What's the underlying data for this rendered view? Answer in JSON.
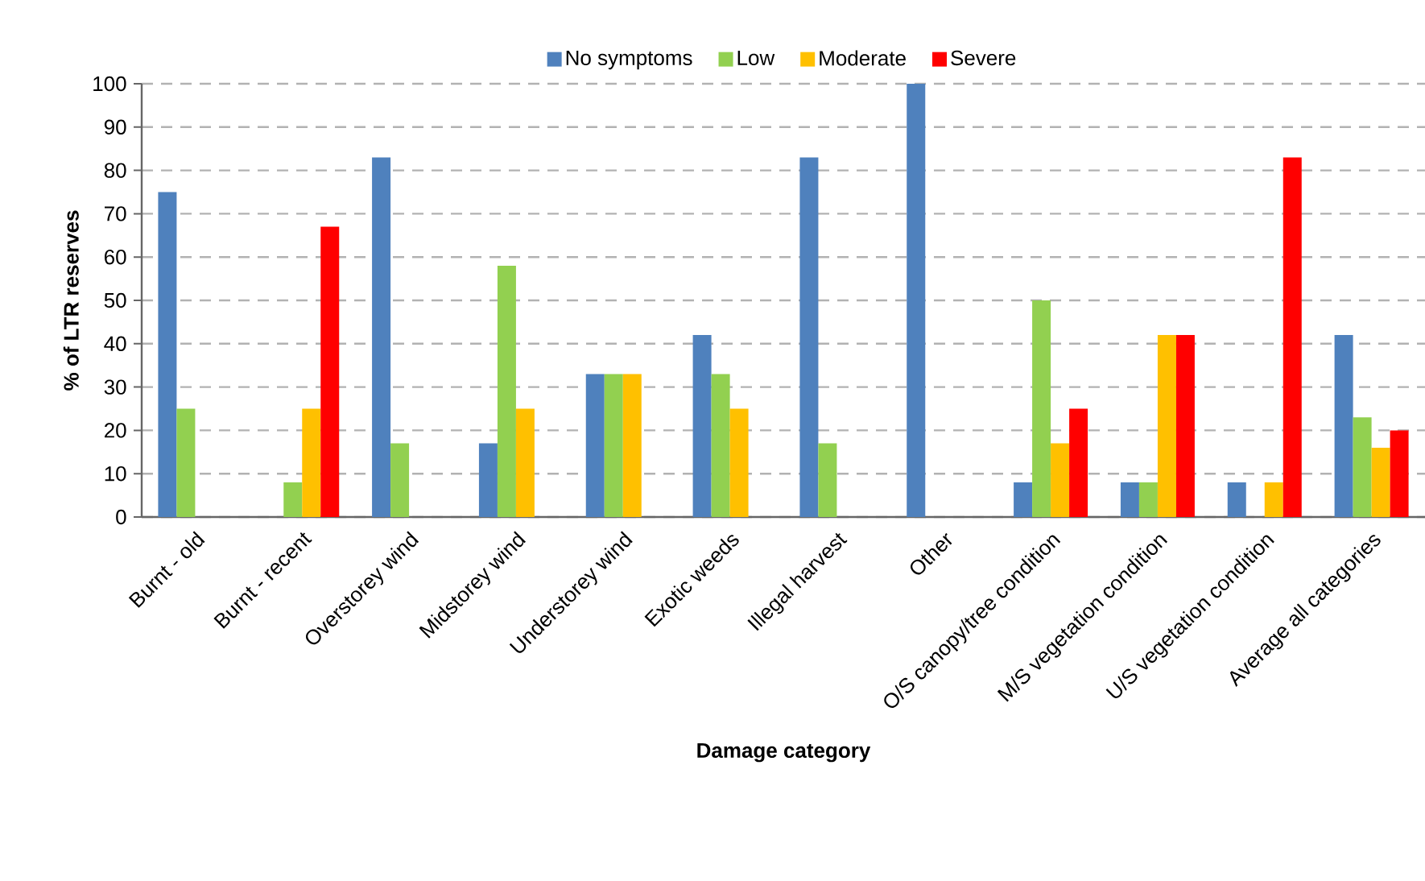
{
  "chart_data": {
    "type": "bar",
    "xlabel": "Damage category",
    "ylabel": "% of LTR reserves",
    "categories": [
      "Burnt - old",
      "Burnt - recent",
      "Overstorey wind",
      "Midstorey wind",
      "Understorey wind",
      "Exotic weeds",
      "Illegal harvest",
      "Other",
      "O/S canopy/tree condition",
      "M/S vegetation condition",
      "U/S vegetation condition",
      "Average all categories"
    ],
    "series": [
      {
        "name": "No symptoms",
        "color": "#4f81bd",
        "values": [
          75,
          0,
          83,
          17,
          33,
          42,
          83,
          100,
          8,
          8,
          8,
          42
        ]
      },
      {
        "name": "Low",
        "color": "#92d050",
        "values": [
          25,
          8,
          17,
          58,
          33,
          33,
          17,
          0,
          50,
          8,
          0,
          23
        ]
      },
      {
        "name": "Moderate",
        "color": "#ffc000",
        "values": [
          0,
          25,
          0,
          25,
          33,
          25,
          0,
          0,
          17,
          42,
          8,
          16
        ]
      },
      {
        "name": "Severe",
        "color": "#ff0000",
        "values": [
          0,
          67,
          0,
          0,
          0,
          0,
          0,
          0,
          25,
          42,
          83,
          20
        ]
      }
    ],
    "ylim": [
      0,
      100
    ],
    "yticks": [
      0,
      10,
      20,
      30,
      40,
      50,
      60,
      70,
      80,
      90,
      100
    ],
    "grid": "y",
    "legend": "top"
  }
}
